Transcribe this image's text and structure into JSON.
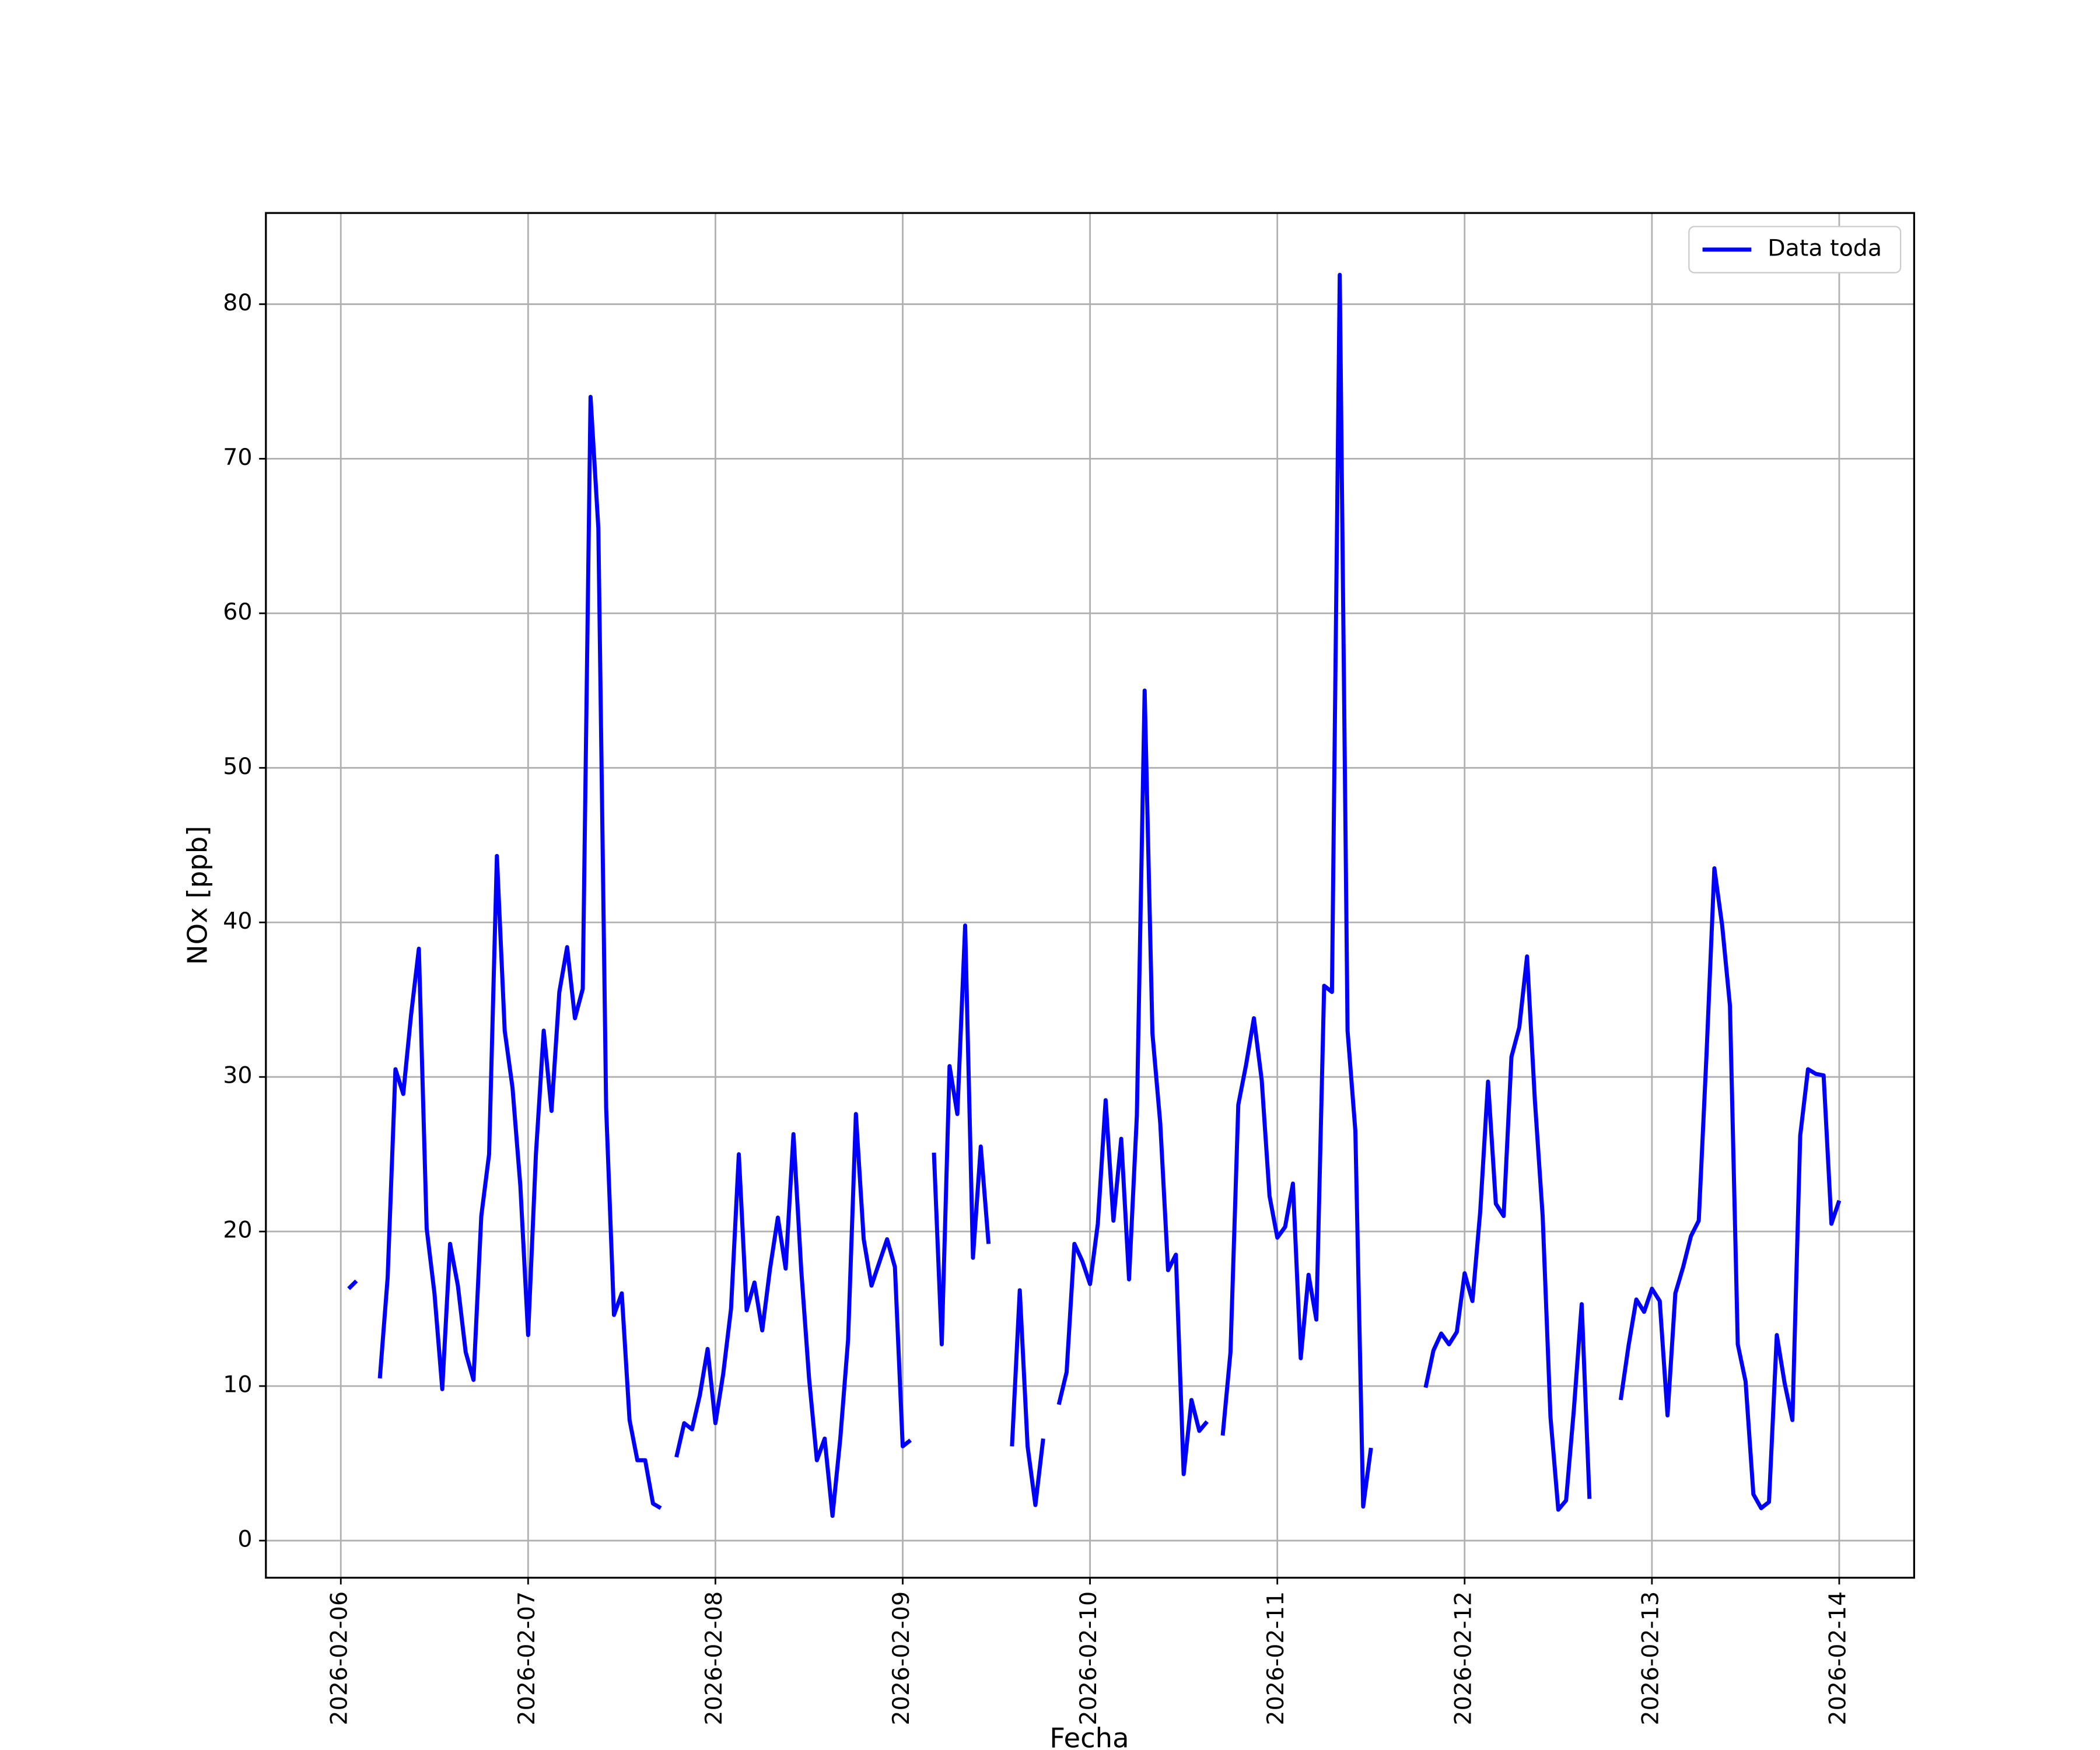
{
  "chart_data": {
    "type": "line",
    "xlabel": "Fecha",
    "ylabel": "NOx [ppb]",
    "xlim": [
      "2026-02-05 14:24",
      "2026-02-14 09:36"
    ],
    "xticks": [
      "2026-02-06",
      "2026-02-07",
      "2026-02-08",
      "2026-02-09",
      "2026-02-10",
      "2026-02-11",
      "2026-02-12",
      "2026-02-13",
      "2026-02-14"
    ],
    "ylim": [
      -2.4,
      85.9
    ],
    "yticks": [
      0,
      10,
      20,
      30,
      40,
      50,
      60,
      70,
      80
    ],
    "grid": true,
    "legend": "upper right",
    "x": [
      "2026-02-06 00:00",
      "2026-02-06 01:00",
      "2026-02-06 02:00",
      "2026-02-06 03:00",
      "2026-02-06 04:00",
      "2026-02-06 05:00",
      "2026-02-06 06:00",
      "2026-02-06 07:00",
      "2026-02-06 08:00",
      "2026-02-06 09:00",
      "2026-02-06 10:00",
      "2026-02-06 11:00",
      "2026-02-06 12:00",
      "2026-02-06 13:00",
      "2026-02-06 14:00",
      "2026-02-06 15:00",
      "2026-02-06 16:00",
      "2026-02-06 17:00",
      "2026-02-06 18:00",
      "2026-02-06 19:00",
      "2026-02-06 20:00",
      "2026-02-06 21:00",
      "2026-02-06 22:00",
      "2026-02-06 23:00",
      "2026-02-07 00:00",
      "2026-02-07 01:00",
      "2026-02-07 02:00",
      "2026-02-07 03:00",
      "2026-02-07 04:00",
      "2026-02-07 05:00",
      "2026-02-07 06:00",
      "2026-02-07 07:00",
      "2026-02-07 08:00",
      "2026-02-07 09:00",
      "2026-02-07 10:00",
      "2026-02-07 11:00",
      "2026-02-07 12:00",
      "2026-02-07 13:00",
      "2026-02-07 14:00",
      "2026-02-07 15:00",
      "2026-02-07 16:00",
      "2026-02-07 17:00",
      "2026-02-07 18:00",
      "2026-02-07 19:00",
      "2026-02-07 20:00",
      "2026-02-07 21:00",
      "2026-02-07 22:00",
      "2026-02-07 23:00",
      "2026-02-08 00:00",
      "2026-02-08 01:00",
      "2026-02-08 02:00",
      "2026-02-08 03:00",
      "2026-02-08 04:00",
      "2026-02-08 05:00",
      "2026-02-08 06:00",
      "2026-02-08 07:00",
      "2026-02-08 08:00",
      "2026-02-08 09:00",
      "2026-02-08 10:00",
      "2026-02-08 11:00",
      "2026-02-08 12:00",
      "2026-02-08 13:00",
      "2026-02-08 14:00",
      "2026-02-08 15:00",
      "2026-02-08 16:00",
      "2026-02-08 17:00",
      "2026-02-08 18:00",
      "2026-02-08 19:00",
      "2026-02-08 20:00",
      "2026-02-08 21:00",
      "2026-02-08 22:00",
      "2026-02-08 23:00",
      "2026-02-09 00:00",
      "2026-02-09 01:00",
      "2026-02-09 02:00",
      "2026-02-09 03:00",
      "2026-02-09 04:00",
      "2026-02-09 05:00",
      "2026-02-09 06:00",
      "2026-02-09 07:00",
      "2026-02-09 08:00",
      "2026-02-09 09:00",
      "2026-02-09 10:00",
      "2026-02-09 11:00",
      "2026-02-09 12:00",
      "2026-02-09 13:00",
      "2026-02-09 14:00",
      "2026-02-09 15:00",
      "2026-02-09 16:00",
      "2026-02-09 17:00",
      "2026-02-09 18:00",
      "2026-02-09 19:00",
      "2026-02-09 20:00",
      "2026-02-09 21:00",
      "2026-02-09 22:00",
      "2026-02-09 23:00",
      "2026-02-10 00:00",
      "2026-02-10 01:00",
      "2026-02-10 02:00",
      "2026-02-10 03:00",
      "2026-02-10 04:00",
      "2026-02-10 05:00",
      "2026-02-10 06:00",
      "2026-02-10 07:00",
      "2026-02-10 08:00",
      "2026-02-10 09:00",
      "2026-02-10 10:00",
      "2026-02-10 11:00",
      "2026-02-10 12:00",
      "2026-02-10 13:00",
      "2026-02-10 14:00",
      "2026-02-10 15:00",
      "2026-02-10 16:00",
      "2026-02-10 17:00",
      "2026-02-10 18:00",
      "2026-02-10 19:00",
      "2026-02-10 20:00",
      "2026-02-10 21:00",
      "2026-02-10 22:00",
      "2026-02-10 23:00",
      "2026-02-11 00:00",
      "2026-02-11 01:00",
      "2026-02-11 02:00",
      "2026-02-11 03:00",
      "2026-02-11 04:00",
      "2026-02-11 05:00",
      "2026-02-11 06:00",
      "2026-02-11 07:00",
      "2026-02-11 08:00",
      "2026-02-11 09:00",
      "2026-02-11 10:00",
      "2026-02-11 11:00",
      "2026-02-11 12:00",
      "2026-02-11 13:00",
      "2026-02-11 14:00",
      "2026-02-11 15:00",
      "2026-02-11 16:00",
      "2026-02-11 17:00",
      "2026-02-11 18:00",
      "2026-02-11 19:00",
      "2026-02-11 20:00",
      "2026-02-11 21:00",
      "2026-02-11 22:00",
      "2026-02-11 23:00",
      "2026-02-12 00:00",
      "2026-02-12 01:00",
      "2026-02-12 02:00",
      "2026-02-12 03:00",
      "2026-02-12 04:00",
      "2026-02-12 05:00",
      "2026-02-12 06:00",
      "2026-02-12 07:00",
      "2026-02-12 08:00",
      "2026-02-12 09:00",
      "2026-02-12 10:00",
      "2026-02-12 11:00",
      "2026-02-12 12:00",
      "2026-02-12 13:00",
      "2026-02-12 14:00",
      "2026-02-12 15:00",
      "2026-02-12 16:00",
      "2026-02-12 17:00",
      "2026-02-12 18:00",
      "2026-02-12 19:00",
      "2026-02-12 20:00",
      "2026-02-12 21:00",
      "2026-02-12 22:00",
      "2026-02-12 23:00",
      "2026-02-13 00:00",
      "2026-02-13 01:00",
      "2026-02-13 02:00",
      "2026-02-13 03:00",
      "2026-02-13 04:00",
      "2026-02-13 05:00",
      "2026-02-13 06:00",
      "2026-02-13 07:00",
      "2026-02-13 08:00",
      "2026-02-13 09:00",
      "2026-02-13 10:00",
      "2026-02-13 11:00",
      "2026-02-13 12:00",
      "2026-02-13 13:00",
      "2026-02-13 14:00",
      "2026-02-13 15:00",
      "2026-02-13 16:00",
      "2026-02-13 17:00",
      "2026-02-13 18:00",
      "2026-02-13 19:00",
      "2026-02-13 20:00",
      "2026-02-13 21:00",
      "2026-02-13 22:00",
      "2026-02-13 23:00",
      "2026-02-14 00:00"
    ],
    "series": [
      {
        "name": "Data toda",
        "color": "#0000ff",
        "values": [
          null,
          16.3,
          16.8,
          null,
          null,
          10.5,
          17,
          30.5,
          28.9,
          34,
          38.3,
          20.2,
          16,
          9.8,
          19.2,
          16.5,
          12.2,
          10.4,
          21,
          25,
          44.3,
          33,
          29.3,
          23,
          13.3,
          25,
          33,
          27.8,
          35.5,
          38.4,
          33.8,
          35.7,
          74,
          65.5,
          28,
          14.6,
          16,
          7.8,
          5.2,
          5.2,
          2.4,
          2.1,
          null,
          5.4,
          7.6,
          7.2,
          9.4,
          12.4,
          7.6,
          10.8,
          15,
          25,
          14.9,
          16.7,
          13.6,
          17.6,
          20.9,
          17.6,
          26.3,
          17.5,
          10.5,
          5.2,
          6.6,
          1.6,
          6.6,
          13,
          27.6,
          19.5,
          16.5,
          18,
          19.5,
          17.7,
          6.1,
          6.5,
          null,
          null,
          25.1,
          12.7,
          30.7,
          27.6,
          39.8,
          18.3,
          25.5,
          19.2,
          null,
          null,
          6.1,
          16.2,
          6.1,
          2.3,
          6.6,
          null,
          8.8,
          10.9,
          19.2,
          18.1,
          16.6,
          20.5,
          28.5,
          20.7,
          26,
          16.9,
          27.5,
          55,
          32.8,
          27,
          17.5,
          18.5,
          4.3,
          9.1,
          7.1,
          7.7,
          null,
          6.8,
          12.2,
          28.2,
          30.8,
          33.8,
          29.8,
          22.3,
          19.6,
          20.3,
          23.1,
          11.8,
          17.2,
          14.3,
          35.9,
          35.5,
          81.9,
          33,
          26.5,
          2.2,
          6,
          null,
          null,
          null,
          null,
          null,
          null,
          9.9,
          12.3,
          13.4,
          12.7,
          13.5,
          17.3,
          15.5,
          21.3,
          29.7,
          21.8,
          21,
          31.3,
          33.2,
          37.8,
          28.5,
          21,
          8,
          2,
          2.6,
          8.5,
          15.3,
          2.7,
          null,
          null,
          null,
          9.1,
          12.6,
          15.6,
          14.8,
          16.3,
          15.5,
          8.1,
          16,
          17.7,
          19.7,
          20.7,
          31.5,
          43.5,
          39.8,
          34.6,
          12.7,
          10.3,
          3,
          2.1,
          2.5,
          13.3,
          10.2,
          7.8,
          26.2,
          30.5,
          30.2,
          30.1,
          20.5,
          22
        ]
      }
    ]
  }
}
